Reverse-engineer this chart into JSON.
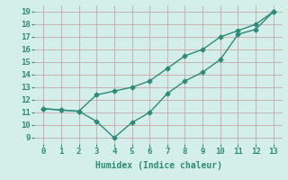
{
  "line1_x": [
    0,
    1,
    2,
    3,
    4,
    5,
    6,
    7,
    8,
    9,
    10,
    11,
    12,
    13
  ],
  "line1_y": [
    11.3,
    11.2,
    11.1,
    12.4,
    12.7,
    13.0,
    13.5,
    14.5,
    15.5,
    16.0,
    17.0,
    17.5,
    18.0,
    19.0
  ],
  "line2_x": [
    0,
    1,
    2,
    3,
    4,
    5,
    6,
    7,
    8,
    9,
    10,
    11,
    12,
    13
  ],
  "line2_y": [
    11.3,
    11.2,
    11.1,
    10.3,
    9.0,
    10.2,
    11.0,
    12.5,
    13.5,
    14.2,
    15.2,
    17.2,
    17.6,
    19.0
  ],
  "line_color": "#2e8b7a",
  "bg_color": "#d4eeea",
  "grid_color": "#c8a8a8",
  "xlabel": "Humidex (Indice chaleur)",
  "xlim": [
    -0.5,
    13.5
  ],
  "ylim": [
    8.5,
    19.5
  ],
  "xticks": [
    0,
    1,
    2,
    3,
    4,
    5,
    6,
    7,
    8,
    9,
    10,
    11,
    12,
    13
  ],
  "yticks": [
    9,
    10,
    11,
    12,
    13,
    14,
    15,
    16,
    17,
    18,
    19
  ],
  "marker": "D",
  "markersize": 2.5,
  "linewidth": 1.0,
  "xlabel_fontsize": 7,
  "tick_fontsize": 6.5
}
